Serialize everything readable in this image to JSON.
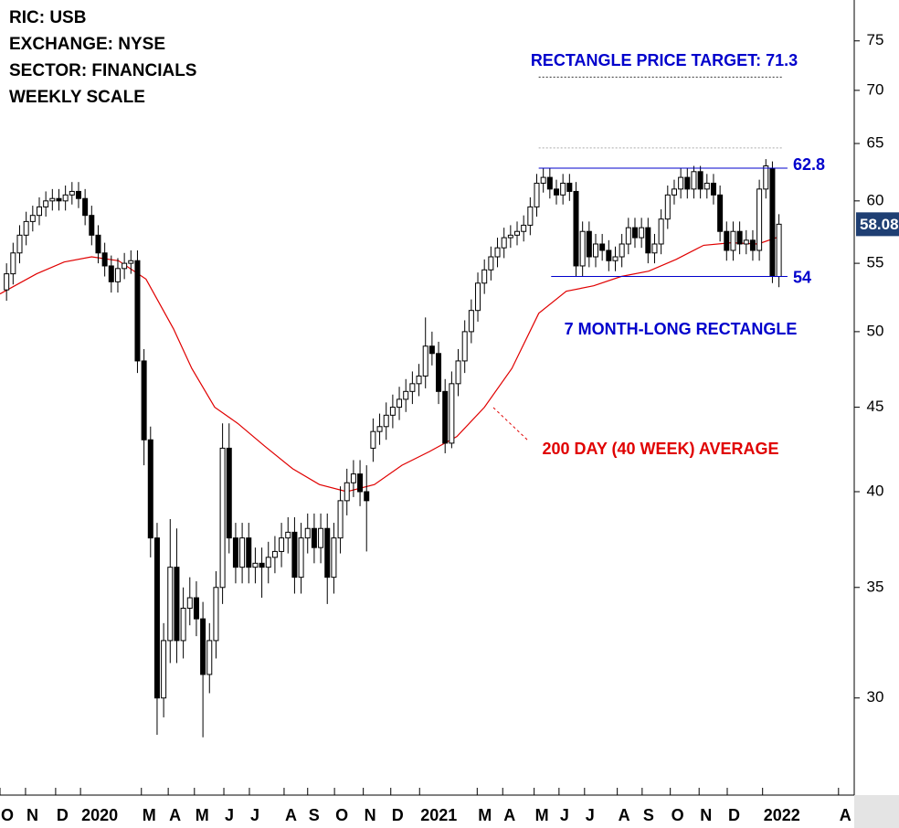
{
  "chart_data": {
    "type": "candlestick",
    "info": [
      "RIC: USB",
      "EXCHANGE: NYSE",
      "SECTOR: FINANCIALS",
      "WEEKLY SCALE"
    ],
    "x": [
      1,
      2,
      3,
      4,
      5,
      6,
      7,
      8,
      9,
      10,
      11,
      12,
      13,
      14,
      15,
      16,
      17,
      18,
      19,
      20,
      21,
      22,
      23,
      24,
      25,
      26,
      27,
      28,
      29,
      30,
      31,
      32,
      33,
      34,
      35,
      36,
      37,
      38,
      39,
      40,
      41,
      42,
      43,
      44,
      45,
      46,
      47,
      48,
      49,
      50,
      51,
      52,
      53,
      54,
      55,
      56,
      57,
      58,
      59,
      60,
      61,
      62,
      63,
      64,
      65,
      66,
      67,
      68,
      69,
      70,
      71,
      72,
      73,
      74,
      75,
      76,
      77,
      78,
      79,
      80,
      81,
      82,
      83,
      84,
      85,
      86,
      87,
      88,
      89,
      90,
      91,
      92,
      93,
      94,
      95,
      96,
      97,
      98,
      99,
      100,
      101,
      102,
      103,
      104,
      105,
      106,
      107,
      108,
      109,
      110,
      111,
      112,
      113,
      114,
      115,
      116,
      117,
      118,
      119
    ],
    "open": [
      53.0,
      54.2,
      55.8,
      57.2,
      58.3,
      58.8,
      59.5,
      60.0,
      60.2,
      60.0,
      60.5,
      60.8,
      60.2,
      58.8,
      57.2,
      55.8,
      54.8,
      53.6,
      54.6,
      55.0,
      55.2,
      48.0,
      43.0,
      37.5,
      30.0,
      32.5,
      36.0,
      32.5,
      34.0,
      34.5,
      33.5,
      31.0,
      32.5,
      35.0,
      42.5,
      37.5,
      36.0,
      37.5,
      36.0,
      36.2,
      36.0,
      36.5,
      36.8,
      37.5,
      37.8,
      35.5,
      37.5,
      38.0,
      37.0,
      38.0,
      35.5,
      37.5,
      39.5,
      40.5,
      41.0,
      40.0,
      42.5,
      43.5,
      43.8,
      44.5,
      45.0,
      45.5,
      46.0,
      46.5,
      47.0,
      49.0,
      48.5,
      46.0,
      42.8,
      46.5,
      48.0,
      50.0,
      51.5,
      53.5,
      54.5,
      55.5,
      56.2,
      57.0,
      57.2,
      57.5,
      58.0,
      59.5,
      61.5,
      62.0,
      61.0,
      60.5,
      61.5,
      60.8,
      54.8,
      57.5,
      55.5,
      56.5,
      56.0,
      55.2,
      55.5,
      56.5,
      57.8,
      57.0,
      57.8,
      55.8,
      56.5,
      58.5,
      60.5,
      61.0,
      62.0,
      61.0,
      62.5,
      61.0,
      61.5,
      60.5,
      57.5,
      56.0,
      57.5,
      56.5,
      56.8,
      56.0,
      61.0,
      62.8,
      54.0
    ],
    "high": [
      55.0,
      56.6,
      58.0,
      59.1,
      59.6,
      60.3,
      60.8,
      61.0,
      61.0,
      61.3,
      61.6,
      61.6,
      61.0,
      59.6,
      58.0,
      56.6,
      55.6,
      55.4,
      55.8,
      56.0,
      56.0,
      48.8,
      43.8,
      38.3,
      33.3,
      38.5,
      38.0,
      35.0,
      35.5,
      35.3,
      34.3,
      33.3,
      35.8,
      44.0,
      44.0,
      38.3,
      38.3,
      38.3,
      37.0,
      37.0,
      37.3,
      37.6,
      38.3,
      38.6,
      38.6,
      38.3,
      38.8,
      38.8,
      38.8,
      38.8,
      38.3,
      40.3,
      41.3,
      41.8,
      41.8,
      41.5,
      44.3,
      44.6,
      45.3,
      45.8,
      46.3,
      46.8,
      47.3,
      47.8,
      51.0,
      50.0,
      49.3,
      46.8,
      47.3,
      48.8,
      50.8,
      52.3,
      54.3,
      55.3,
      56.3,
      57.0,
      57.8,
      58.0,
      58.3,
      58.8,
      60.3,
      62.3,
      62.8,
      62.8,
      61.8,
      62.3,
      62.3,
      61.6,
      58.3,
      58.3,
      57.3,
      57.3,
      56.8,
      56.3,
      57.3,
      58.6,
      58.6,
      58.6,
      58.6,
      57.3,
      59.3,
      61.3,
      61.8,
      62.8,
      62.8,
      63.0,
      63.0,
      62.3,
      62.3,
      61.3,
      58.3,
      58.3,
      58.3,
      57.6,
      57.6,
      61.8,
      63.6,
      63.4,
      58.9
    ],
    "low": [
      52.2,
      53.4,
      55.0,
      56.4,
      57.5,
      58.0,
      58.7,
      59.2,
      59.2,
      59.2,
      59.7,
      59.4,
      58.0,
      56.4,
      55.0,
      54.0,
      52.8,
      52.8,
      53.8,
      54.2,
      47.2,
      41.5,
      36.5,
      28.5,
      29.2,
      31.5,
      31.5,
      31.7,
      33.2,
      32.7,
      28.4,
      30.2,
      31.7,
      34.2,
      36.7,
      35.2,
      35.2,
      35.2,
      35.2,
      34.5,
      35.2,
      35.7,
      36.0,
      36.7,
      34.7,
      34.7,
      36.7,
      36.2,
      36.2,
      34.2,
      34.7,
      36.7,
      38.7,
      39.7,
      39.2,
      36.8,
      41.7,
      42.7,
      43.0,
      43.7,
      44.2,
      44.7,
      45.2,
      45.7,
      46.2,
      47.7,
      45.2,
      42.2,
      42.5,
      45.7,
      47.2,
      49.2,
      50.7,
      52.7,
      53.7,
      54.7,
      55.4,
      56.2,
      56.4,
      56.7,
      57.2,
      58.7,
      60.7,
      60.2,
      59.7,
      59.7,
      60.0,
      54.0,
      54.0,
      54.7,
      54.7,
      55.2,
      54.4,
      54.4,
      54.7,
      55.7,
      56.2,
      56.2,
      55.0,
      55.0,
      55.7,
      57.7,
      59.7,
      60.2,
      60.2,
      60.2,
      60.2,
      60.2,
      59.7,
      56.7,
      55.2,
      55.2,
      55.7,
      55.7,
      55.2,
      55.2,
      60.2,
      53.5,
      53.2
    ],
    "close": [
      54.2,
      55.8,
      57.2,
      58.3,
      58.8,
      59.5,
      60.0,
      60.2,
      60.0,
      60.5,
      60.8,
      60.2,
      58.8,
      57.2,
      55.8,
      54.8,
      53.6,
      54.6,
      55.0,
      55.2,
      48.0,
      43.0,
      37.5,
      30.0,
      32.5,
      36.0,
      32.5,
      34.0,
      34.5,
      33.5,
      31.0,
      32.5,
      35.0,
      42.5,
      37.5,
      36.0,
      37.5,
      36.0,
      36.2,
      36.0,
      36.5,
      36.8,
      37.5,
      37.8,
      35.5,
      37.5,
      38.0,
      37.0,
      38.0,
      35.5,
      37.5,
      39.5,
      40.5,
      41.0,
      40.0,
      39.5,
      43.5,
      43.8,
      44.5,
      45.0,
      45.5,
      46.0,
      46.5,
      47.0,
      49.0,
      48.5,
      46.0,
      42.8,
      46.5,
      48.0,
      50.0,
      51.5,
      53.5,
      54.5,
      55.5,
      56.2,
      57.0,
      57.2,
      57.5,
      58.0,
      59.5,
      61.5,
      62.0,
      61.0,
      60.5,
      61.5,
      60.8,
      54.8,
      57.5,
      55.5,
      56.5,
      56.0,
      55.2,
      55.5,
      56.5,
      57.8,
      57.0,
      57.8,
      55.8,
      56.5,
      58.5,
      60.5,
      61.0,
      62.0,
      61.0,
      62.5,
      61.0,
      61.5,
      60.5,
      57.5,
      56.0,
      57.5,
      56.5,
      56.8,
      56.0,
      61.0,
      63.0,
      54.0,
      58.08
    ],
    "up_color": "#ffffff",
    "down_color": "#000000",
    "last_color": "#1f3f73",
    "log_scale": true,
    "ylim": [
      26.2,
      79.4
    ],
    "yticks": [
      30,
      35,
      40,
      45,
      50,
      55,
      60,
      65,
      70,
      75
    ],
    "xlim": [
      0,
      130.5
    ],
    "xticks": [
      {
        "value": 0,
        "label": "O"
      },
      {
        "value": 3.9,
        "label": "N"
      },
      {
        "value": 8.5,
        "label": "D"
      },
      {
        "value": 12.3,
        "label": "2020"
      },
      {
        "value": 21.6,
        "label": "M"
      },
      {
        "value": 25.7,
        "label": "A"
      },
      {
        "value": 29.7,
        "label": "M"
      },
      {
        "value": 34.2,
        "label": "J"
      },
      {
        "value": 38.1,
        "label": "J"
      },
      {
        "value": 43.4,
        "label": "A"
      },
      {
        "value": 47.0,
        "label": "S"
      },
      {
        "value": 51.1,
        "label": "O"
      },
      {
        "value": 55.5,
        "label": "N"
      },
      {
        "value": 59.7,
        "label": "D"
      },
      {
        "value": 64.1,
        "label": "2021"
      },
      {
        "value": 72.9,
        "label": "M"
      },
      {
        "value": 76.8,
        "label": "A"
      },
      {
        "value": 81.6,
        "label": "M"
      },
      {
        "value": 85.4,
        "label": "J"
      },
      {
        "value": 89.3,
        "label": "J"
      },
      {
        "value": 94.3,
        "label": "A"
      },
      {
        "value": 98.1,
        "label": "S"
      },
      {
        "value": 102.4,
        "label": "O"
      },
      {
        "value": 106.8,
        "label": "N"
      },
      {
        "value": 111.1,
        "label": "D"
      },
      {
        "value": 116.5,
        "label": "2022"
      },
      {
        "value": 128.1,
        "label": "A"
      }
    ],
    "moving_average": {
      "label": "200 DAY (40 WEEK) AVERAGE",
      "color": "#e00000",
      "x": [
        0,
        5.6,
        9.8,
        14.0,
        18.1,
        22.3,
        26.5,
        29.3,
        32.8,
        36.3,
        40.5,
        44.7,
        48.8,
        53.0,
        57.2,
        61.4,
        65.6,
        69.8,
        74.0,
        78.2,
        82.3,
        86.5,
        90.7,
        94.9,
        99.1,
        103.3,
        107.5,
        111.7,
        115.8,
        118.6
      ],
      "values": [
        52.7,
        54.2,
        55.1,
        55.5,
        55.2,
        53.8,
        50.2,
        47.5,
        45.0,
        44.0,
        42.6,
        41.3,
        40.4,
        40.0,
        40.4,
        41.5,
        42.3,
        43.2,
        45.0,
        47.5,
        51.3,
        52.9,
        53.3,
        54.0,
        54.4,
        55.3,
        56.4,
        56.6,
        56.5,
        57.0
      ]
    },
    "rectangle": {
      "label": "7 MONTH-LONG RECTANGLE",
      "color": "#0000cc",
      "top": 62.8,
      "bottom": 54,
      "top_x": [
        82.3,
        120.3
      ],
      "bottom_x": [
        84.2,
        120.3
      ]
    },
    "target": {
      "label": "RECTANGLE PRICE TARGET: 71.3",
      "value": 71.3,
      "x": [
        82.3,
        119.7
      ]
    },
    "guide": {
      "value": 64.6,
      "x": [
        82.3,
        119.7
      ]
    }
  }
}
